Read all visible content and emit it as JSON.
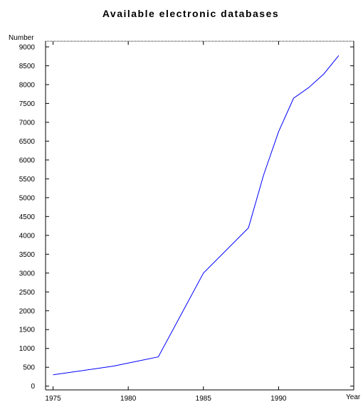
{
  "chart_data": {
    "type": "line",
    "title": "Available electronic databases",
    "ylabel": "Number",
    "xlabel": "Year",
    "xlim": [
      1974.5,
      1995
    ],
    "ylim": [
      -100,
      9150
    ],
    "xticks": [
      1975,
      1980,
      1985,
      1990
    ],
    "yticks": [
      0,
      500,
      1000,
      1500,
      2000,
      2500,
      3000,
      3500,
      4000,
      4500,
      5000,
      5500,
      6000,
      6500,
      7000,
      7500,
      8000,
      8500,
      9000
    ],
    "grid": false,
    "series": [
      {
        "color": "#0000ff",
        "x": [
          1975,
          1979,
          1982,
          1985,
          1988,
          1989,
          1990,
          1991,
          1992,
          1993,
          1994
        ],
        "y": [
          301,
          530,
          775,
          3000,
          4200,
          5600,
          6750,
          7640,
          7920,
          8280,
          8770
        ]
      }
    ]
  }
}
